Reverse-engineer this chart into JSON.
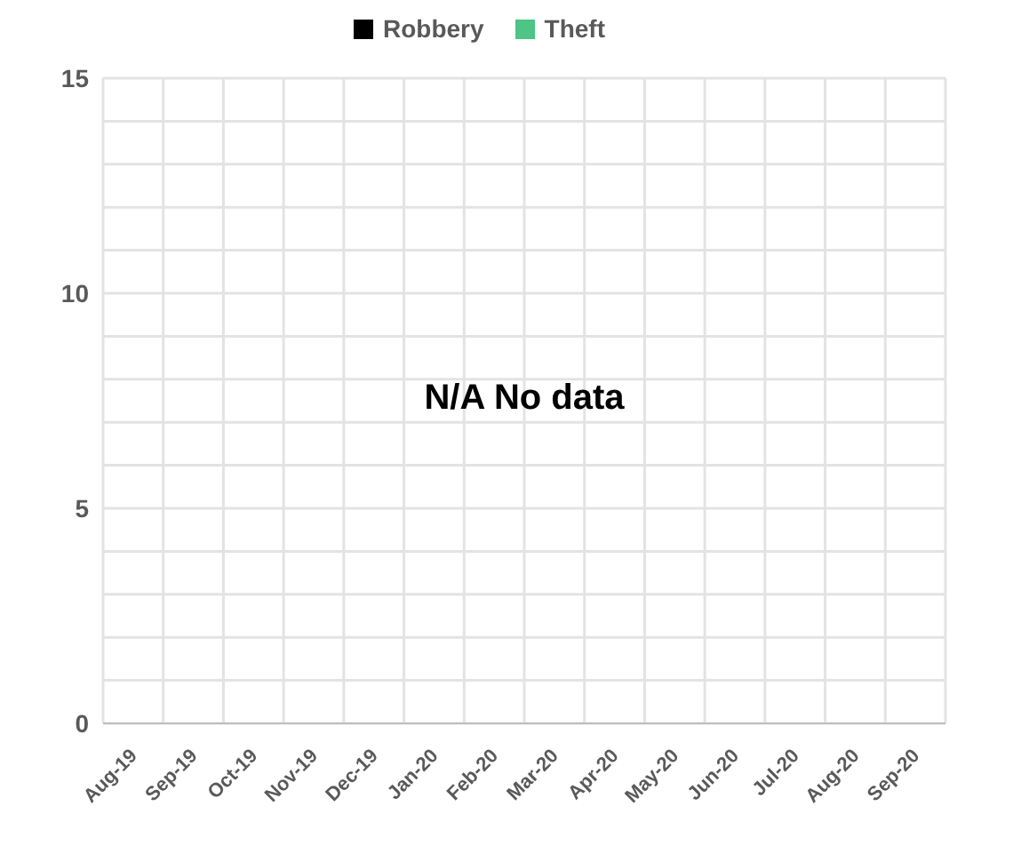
{
  "chart_data": {
    "type": "bar",
    "categories": [
      "Aug-19",
      "Sep-19",
      "Oct-19",
      "Nov-19",
      "Dec-19",
      "Jan-20",
      "Feb-20",
      "Mar-20",
      "Apr-20",
      "May-20",
      "Jun-20",
      "Jul-20",
      "Aug-20",
      "Sep-20"
    ],
    "series": [
      {
        "name": "Robbery",
        "color": "#000000",
        "values": [
          null,
          null,
          null,
          null,
          null,
          null,
          null,
          null,
          null,
          null,
          null,
          null,
          null,
          null
        ]
      },
      {
        "name": "Theft",
        "color": "#4cc585",
        "values": [
          null,
          null,
          null,
          null,
          null,
          null,
          null,
          null,
          null,
          null,
          null,
          null,
          null,
          null
        ]
      }
    ],
    "ylim": [
      0,
      15
    ],
    "yticks": [
      0,
      {
        "value": 1,
        "label": null
      },
      {
        "value": 2,
        "label": null
      },
      {
        "value": 3,
        "label": null
      },
      {
        "value": 4,
        "label": null
      },
      5,
      {
        "value": 6,
        "label": null
      },
      {
        "value": 7,
        "label": null
      },
      {
        "value": 8,
        "label": null
      },
      {
        "value": 9,
        "label": null
      },
      10,
      {
        "value": 11,
        "label": null
      },
      {
        "value": 12,
        "label": null
      },
      {
        "value": 13,
        "label": null
      },
      {
        "value": 14,
        "label": null
      },
      15
    ],
    "grid": true,
    "legend": "top",
    "annotations": [
      "N/A No data"
    ]
  }
}
